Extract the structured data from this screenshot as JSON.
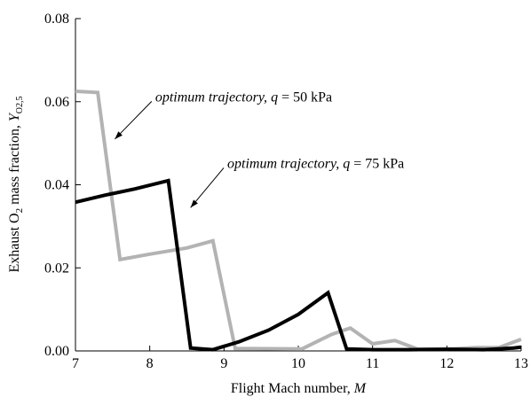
{
  "chart_data": {
    "type": "line",
    "xlabel": "Flight Mach number, M",
    "ylabel": "Exhaust O2 mass fraction, YO2,5",
    "xlim": [
      7,
      13
    ],
    "ylim": [
      0,
      0.08
    ],
    "x_ticks": [
      "7",
      "8",
      "9",
      "10",
      "11",
      "12",
      "13"
    ],
    "y_ticks": [
      "0.00",
      "0.02",
      "0.04",
      "0.06",
      "0.08"
    ],
    "grid": false,
    "series": [
      {
        "name": "optimum trajectory, q = 50 kPa",
        "color": "#b3b3b3",
        "x": [
          7.0,
          7.3,
          7.6,
          8.0,
          8.5,
          8.85,
          9.15,
          10.05,
          10.45,
          10.7,
          11.0,
          11.3,
          11.6,
          12.0,
          12.4,
          12.7,
          13.0
        ],
        "y": [
          0.0625,
          0.0622,
          0.022,
          0.0233,
          0.0248,
          0.0265,
          0.0006,
          0.0005,
          0.004,
          0.0055,
          0.0017,
          0.0025,
          0.0005,
          0.0004,
          0.0008,
          0.0008,
          0.0028
        ]
      },
      {
        "name": "optimum trajectory, q = 75 kPa",
        "color": "#000000",
        "x": [
          7.0,
          7.4,
          7.8,
          8.25,
          8.55,
          8.85,
          9.2,
          9.6,
          10.0,
          10.4,
          10.65,
          11.0,
          11.5,
          12.0,
          12.5,
          12.9,
          13.0
        ],
        "y": [
          0.0358,
          0.0375,
          0.039,
          0.041,
          0.0007,
          0.0003,
          0.0022,
          0.005,
          0.0088,
          0.014,
          0.0005,
          0.0003,
          0.0003,
          0.0004,
          0.0003,
          0.0007,
          0.0009
        ]
      }
    ],
    "annotations": [
      {
        "prefix": "optimum trajectory, ",
        "var": "q",
        "suffix": " = 50 kPa",
        "text_x": 8.05,
        "text_y": 0.0605,
        "arrow_from": [
          8.05,
          0.0605
        ],
        "arrow_to": [
          7.53,
          0.051
        ]
      },
      {
        "prefix": "optimum trajectory, ",
        "var": "q",
        "suffix": " = 75 kPa",
        "text_x": 9.02,
        "text_y": 0.0445,
        "arrow_from": [
          9.02,
          0.0445
        ],
        "arrow_to": [
          8.55,
          0.0345
        ]
      }
    ]
  }
}
